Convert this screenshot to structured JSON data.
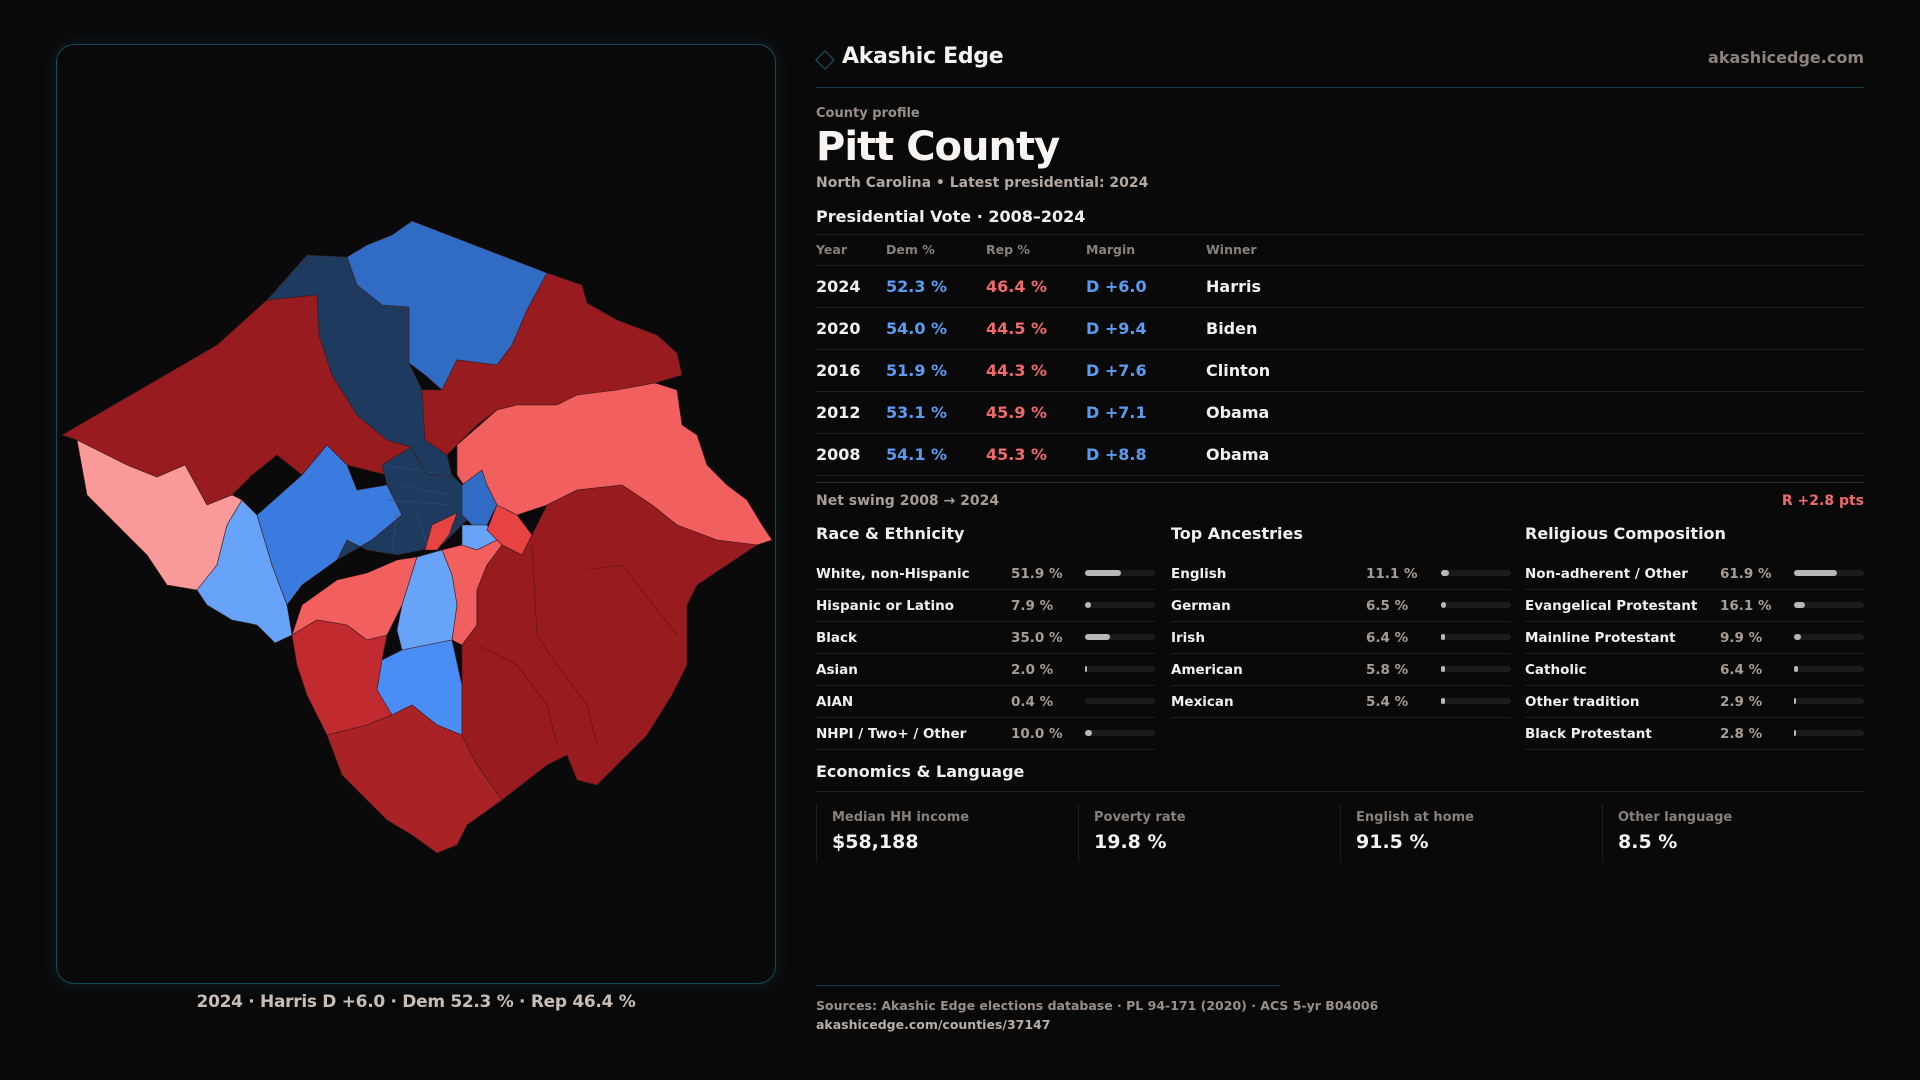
{
  "brand": {
    "name": "Akashic Edge",
    "url": "akashicedge.com",
    "icon": "diamond-outline-icon"
  },
  "profile": {
    "eyebrow": "County profile",
    "title": "Pitt County",
    "subtitle": "North Carolina • Latest presidential: 2024"
  },
  "presidential": {
    "title": "Presidential Vote · 2008–2024",
    "columns": [
      "Year",
      "Dem %",
      "Rep %",
      "Margin",
      "Winner"
    ],
    "rows": [
      {
        "year": "2024",
        "dem": "52.3 %",
        "rep": "46.4 %",
        "margin": "D +6.0",
        "winner": "Harris"
      },
      {
        "year": "2020",
        "dem": "54.0 %",
        "rep": "44.5 %",
        "margin": "D +9.4",
        "winner": "Biden"
      },
      {
        "year": "2016",
        "dem": "51.9 %",
        "rep": "44.3 %",
        "margin": "D +7.6",
        "winner": "Clinton"
      },
      {
        "year": "2012",
        "dem": "53.1 %",
        "rep": "45.9 %",
        "margin": "D +7.1",
        "winner": "Obama"
      },
      {
        "year": "2008",
        "dem": "54.1 %",
        "rep": "45.3 %",
        "margin": "D +8.8",
        "winner": "Obama"
      }
    ],
    "swing_label": "Net swing 2008 → 2024",
    "swing_value": "R +2.8 pts"
  },
  "race": {
    "title": "Race & Ethnicity",
    "items": [
      {
        "label": "White, non-Hispanic",
        "pct": "51.9 %",
        "value": 51.9
      },
      {
        "label": "Hispanic or Latino",
        "pct": "7.9 %",
        "value": 7.9
      },
      {
        "label": "Black",
        "pct": "35.0 %",
        "value": 35.0
      },
      {
        "label": "Asian",
        "pct": "2.0 %",
        "value": 2.0
      },
      {
        "label": "AIAN",
        "pct": "0.4 %",
        "value": 0.4
      },
      {
        "label": "NHPI / Two+ / Other",
        "pct": "10.0 %",
        "value": 10.0
      }
    ]
  },
  "ancestry": {
    "title": "Top Ancestries",
    "items": [
      {
        "label": "English",
        "pct": "11.1 %",
        "value": 11.1
      },
      {
        "label": "German",
        "pct": "6.5 %",
        "value": 6.5
      },
      {
        "label": "Irish",
        "pct": "6.4 %",
        "value": 6.4
      },
      {
        "label": "American",
        "pct": "5.8 %",
        "value": 5.8
      },
      {
        "label": "Mexican",
        "pct": "5.4 %",
        "value": 5.4
      }
    ]
  },
  "religion": {
    "title": "Religious Composition",
    "items": [
      {
        "label": "Non-adherent / Other",
        "pct": "61.9 %",
        "value": 61.9
      },
      {
        "label": "Evangelical Protestant",
        "pct": "16.1 %",
        "value": 16.1
      },
      {
        "label": "Mainline Protestant",
        "pct": "9.9 %",
        "value": 9.9
      },
      {
        "label": "Catholic",
        "pct": "6.4 %",
        "value": 6.4
      },
      {
        "label": "Other tradition",
        "pct": "2.9 %",
        "value": 2.9
      },
      {
        "label": "Black Protestant",
        "pct": "2.8 %",
        "value": 2.8
      }
    ]
  },
  "economics": {
    "title": "Economics & Language",
    "cards": [
      {
        "label": "Median HH income",
        "value": "$58,188"
      },
      {
        "label": "Poverty rate",
        "value": "19.8 %"
      },
      {
        "label": "English at home",
        "value": "91.5 %"
      },
      {
        "label": "Other language",
        "value": "8.5 %"
      }
    ]
  },
  "map": {
    "caption": "2024 · Harris D +6.0 · Dem 52.3 % · Rep 46.4 %",
    "colors": {
      "dem_strong": "#1f3a5f",
      "dem_mid": "#306bc4",
      "dem_lean": "#3a7be0",
      "dem_light": "#67a3f8",
      "dem_pale": "#4a8ef5",
      "rep_strong": "#971b1f",
      "rep_mid": "#c12b2f",
      "rep_lean": "#f25f5f",
      "rep_light": "#f99999",
      "rep_bright": "#e84343"
    }
  },
  "footer": {
    "sources": "Sources: Akashic Edge elections database · PL 94-171 (2020) · ACS 5-yr B04006",
    "url": "akashicedge.com/counties/37147"
  }
}
